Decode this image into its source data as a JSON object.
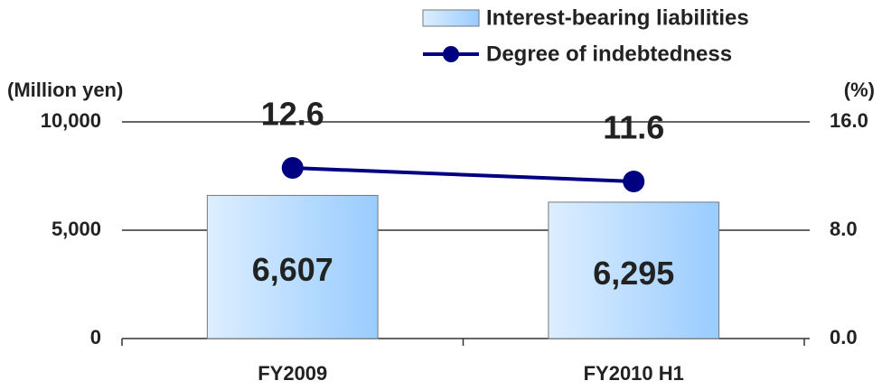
{
  "chart_data": {
    "type": "bar",
    "categories": [
      "FY2009",
      "FY2010 H1"
    ],
    "series": [
      {
        "name": "Interest-bearing liabilities",
        "type": "bar",
        "color": "#99ccff",
        "values": [
          6607,
          6295
        ],
        "value_labels": [
          "6,607",
          "6,295"
        ]
      },
      {
        "name": "Degree of indebtedness",
        "type": "line",
        "axis": "y2",
        "color": "#000080",
        "values": [
          12.6,
          11.6
        ]
      }
    ],
    "ylabel": "(Million yen)",
    "y2label": "(%)",
    "ylim": [
      0,
      10000
    ],
    "yticks": [
      0,
      {
        "value": 5000,
        "label": "5,000"
      },
      {
        "value": 10000,
        "label": "10,000"
      }
    ],
    "y2lim": [
      0,
      16
    ],
    "y2ticks": [
      {
        "value": 0,
        "label": "0.0"
      },
      {
        "value": 8,
        "label": "8.0"
      },
      {
        "value": 16,
        "label": "16.0"
      }
    ],
    "grid": true,
    "legend": "top-right"
  }
}
